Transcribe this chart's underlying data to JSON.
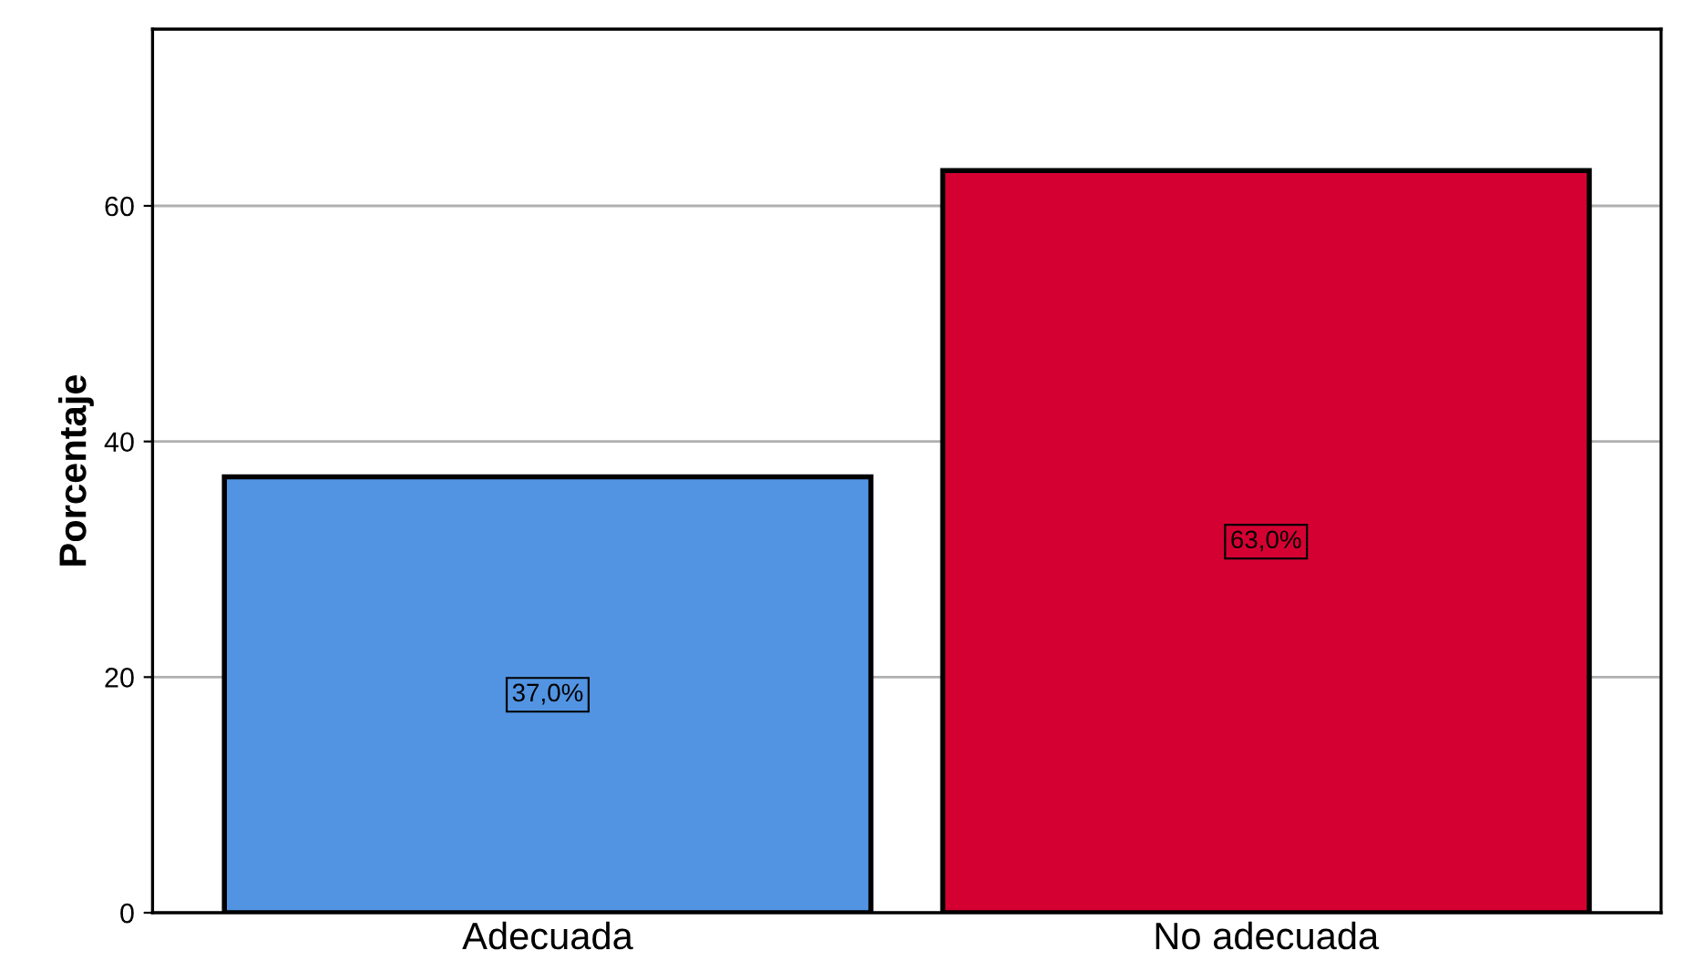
{
  "chart_data": {
    "type": "bar",
    "ylabel": "Porcentaje",
    "categories": [
      "Adecuada",
      "No adecuada"
    ],
    "values": [
      37.0,
      63.0
    ],
    "colors": [
      "#5294e2",
      "#d50032"
    ],
    "value_labels": [
      "37,0%",
      "63,0%"
    ],
    "ylim": [
      0,
      75
    ],
    "yticks": [
      0,
      20,
      40,
      60
    ],
    "grid": "y"
  }
}
